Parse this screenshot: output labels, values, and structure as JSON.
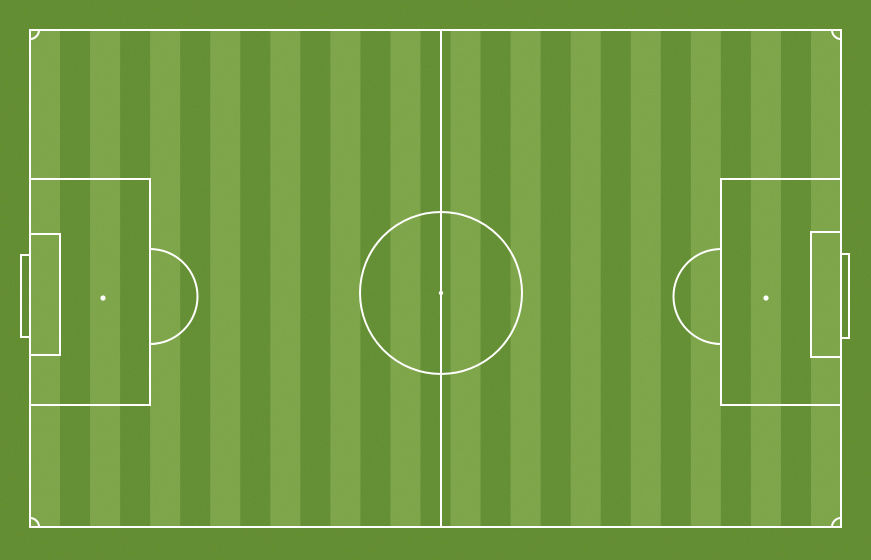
{
  "pitch": {
    "stripe_count": 27,
    "colors": {
      "surround": "#5e8a2d",
      "stripe_light": "#7ba447",
      "stripe_dark": "#5f8c30",
      "line": "#ffffff"
    }
  }
}
